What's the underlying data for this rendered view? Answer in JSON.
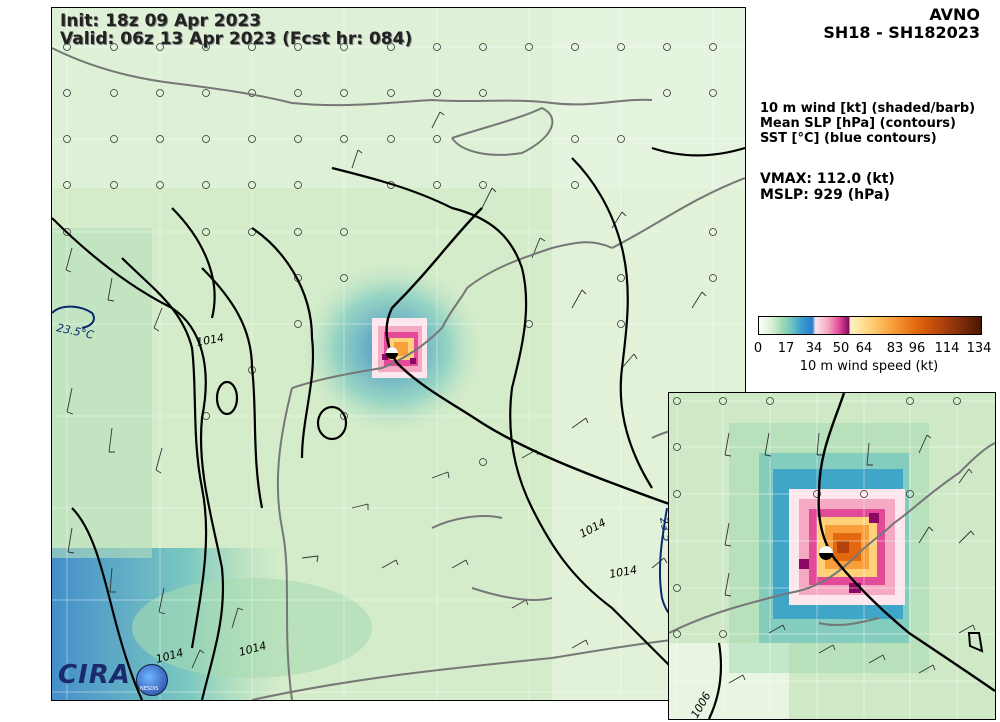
{
  "header": {
    "init": "Init:   18z 09 Apr 2023",
    "valid": "Valid: 06z 13 Apr 2023 (Fcst hr: 084)",
    "model": "AVNO",
    "storm": "SH18 - SH182023"
  },
  "legend_text": {
    "line1": "10 m wind [kt] (shaded/barb)",
    "line2": "Mean SLP [hPa] (contours)",
    "line3": "SST [°C] (blue contours)"
  },
  "metrics": {
    "vmax": "VMAX: 112.0 (kt)",
    "mslp": "MSLP:  929 (hPa)"
  },
  "colorbar": {
    "ticks": [
      "0",
      "17",
      "34",
      "50",
      "64",
      "83",
      "96",
      "114",
      "134"
    ],
    "label": "10 m wind speed (kt)"
  },
  "contour_labels": {
    "slp_a": "1014",
    "slp_b": "1014",
    "slp_c": "1014",
    "slp_d": "1014",
    "slp_e": "1014",
    "sst_a": "23.5°C",
    "sst_b": "23.5",
    "inset_slp": "1006"
  },
  "logo": {
    "text": "CIRA",
    "badge": "NESDIS"
  },
  "colors": {
    "land_outline": "#777777",
    "track": "#000000",
    "sst_contour": "#0a2a6e",
    "background_wind": "#d4ecc9"
  }
}
